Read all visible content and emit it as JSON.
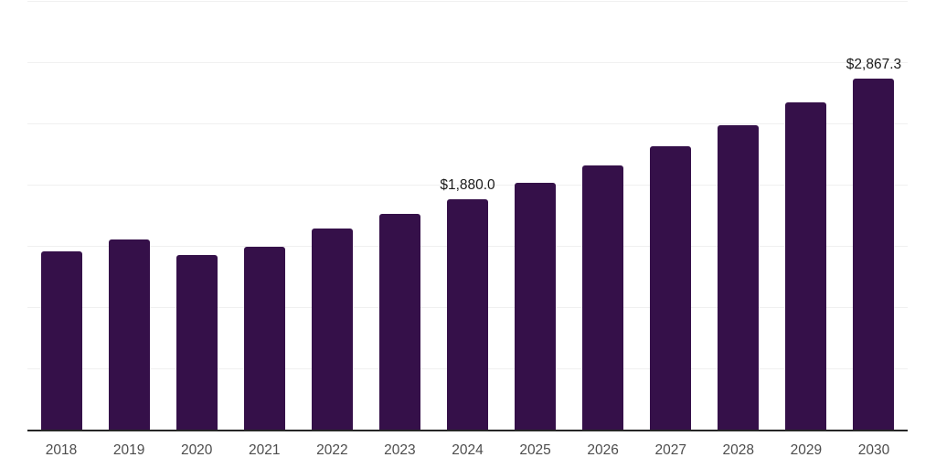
{
  "chart_data": {
    "type": "bar",
    "title": "",
    "xlabel": "",
    "ylabel": "",
    "categories": [
      "2018",
      "2019",
      "2020",
      "2021",
      "2022",
      "2023",
      "2024",
      "2025",
      "2026",
      "2027",
      "2028",
      "2029",
      "2030"
    ],
    "values": [
      1460,
      1550,
      1425,
      1490,
      1645,
      1765,
      1880.0,
      2015,
      2160,
      2315,
      2485,
      2670,
      2867.3
    ],
    "data_labels": [
      "",
      "",
      "",
      "",
      "",
      "",
      "$1,880.0",
      "",
      "",
      "",
      "",
      "",
      "$2,867.3"
    ],
    "ylim": [
      0,
      3510
    ],
    "gridline_step": 500,
    "gridline_max": 3500,
    "grid": true,
    "legend": "none",
    "colors": {
      "bar": "#351049",
      "grid": "#f0f0f0",
      "axis": "#262626",
      "tick_label": "#4d4d4d",
      "value_label": "#1a1a1a",
      "background": "#ffffff"
    }
  }
}
